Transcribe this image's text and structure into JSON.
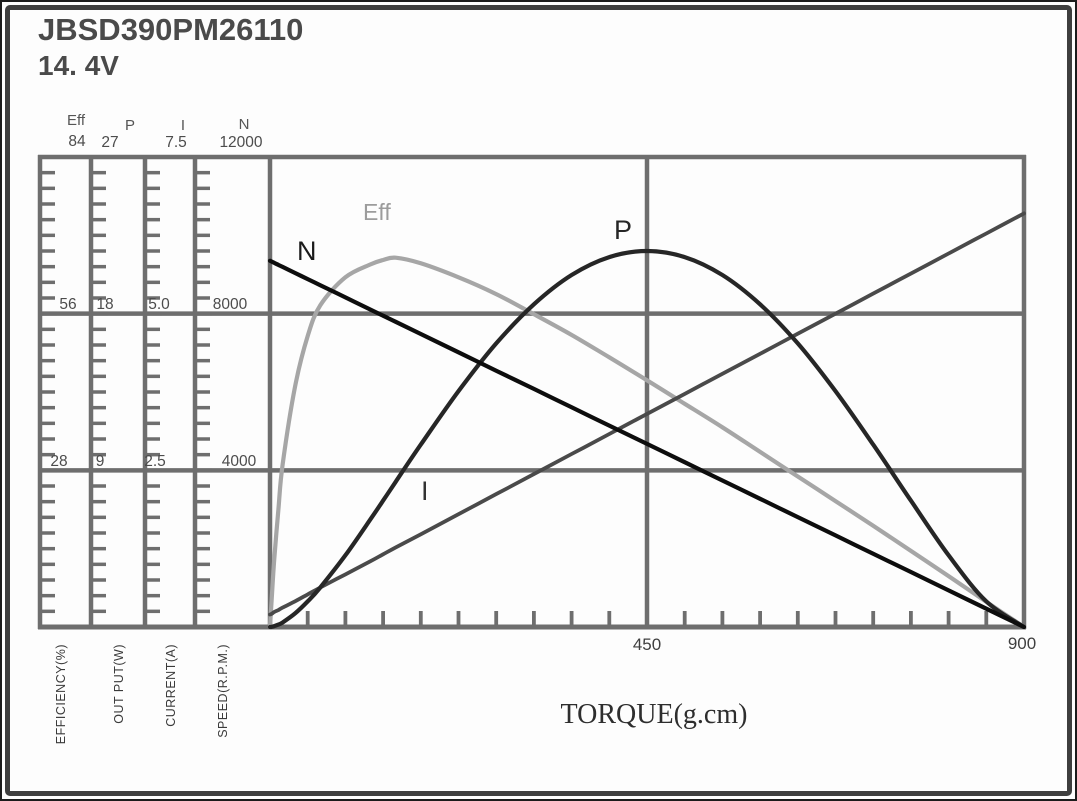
{
  "title": "JBSD390PM26110",
  "voltage": "14. 4V",
  "x_axis": {
    "title": "TORQUE(g.cm)",
    "min": 0,
    "max": 900,
    "minor_tick_interval": 45,
    "labels": [
      "450",
      "900"
    ]
  },
  "y_axes": [
    {
      "id": "eff",
      "header": "Eff",
      "unit_label": "EFFICIENCY(%)",
      "max": 84,
      "tick_labels": [
        "84",
        "56",
        "28"
      ]
    },
    {
      "id": "p",
      "header": "P",
      "unit_label": "OUT PUT(W)",
      "max": 27,
      "tick_labels": [
        "27",
        "18",
        "9"
      ]
    },
    {
      "id": "i",
      "header": "I",
      "unit_label": "CURRENT(A)",
      "max": 7.5,
      "tick_labels": [
        "7.5",
        "5.0",
        "2.5"
      ]
    },
    {
      "id": "n",
      "header": "N",
      "unit_label": "SPEED(R.P.M.)",
      "max": 12000,
      "tick_labels": [
        "12000",
        "8000",
        "4000"
      ]
    }
  ],
  "colors": {
    "grid": "#6e6e6e",
    "n_line": "#0d0d0d",
    "eff_line": "#a6a6a6",
    "p_line": "#262626",
    "i_line": "#4a4a4a"
  },
  "chart_data": {
    "type": "line",
    "title": "JBSD390PM26110 motor performance at 14. 4V",
    "xlabel": "TORQUE(g.cm)",
    "x_range": [
      0,
      900
    ],
    "grid": true,
    "x": [
      0,
      2,
      5,
      10,
      15,
      30,
      45,
      60,
      90,
      120,
      135,
      150,
      180,
      225,
      270,
      315,
      360,
      405,
      450,
      495,
      540,
      585,
      630,
      675,
      720,
      765,
      810,
      855,
      900
    ],
    "series": [
      {
        "name": "N",
        "label": "N",
        "axis": "n",
        "unit": "R.P.M.",
        "color": "#0d0d0d",
        "values": [
          9350,
          9329,
          9298,
          9246,
          9194,
          9038,
          8883,
          8727,
          8415,
          8103,
          7948,
          7792,
          7480,
          7013,
          6545,
          6078,
          5610,
          5143,
          4675,
          4208,
          3740,
          3273,
          2805,
          2338,
          1870,
          1403,
          935,
          468,
          0
        ]
      },
      {
        "name": "Eff",
        "label": "Eff",
        "axis": "eff",
        "unit": "%",
        "color": "#a6a6a6",
        "values": [
          0,
          5,
          12,
          21,
          29,
          43,
          52,
          57.5,
          62.5,
          64.8,
          65.6,
          66,
          65,
          62.5,
          59.5,
          55.9,
          52.2,
          48.2,
          44.1,
          39.9,
          35.7,
          31.3,
          26.9,
          22.5,
          18.1,
          13.6,
          9.1,
          4.5,
          0
        ]
      },
      {
        "name": "P",
        "label": "P",
        "axis": "p",
        "unit": "W",
        "color": "#262626",
        "values": [
          0,
          0.01,
          0.05,
          0.14,
          0.26,
          0.78,
          1.47,
          2.27,
          4.12,
          6.19,
          7.26,
          8.34,
          10.48,
          13.55,
          16.29,
          18.54,
          20.22,
          21.25,
          21.6,
          21.25,
          20.22,
          18.54,
          16.29,
          13.55,
          10.48,
          7.26,
          4.12,
          1.47,
          0
        ]
      },
      {
        "name": "I",
        "label": "I",
        "axis": "i",
        "unit": "A",
        "color": "#4a4a4a",
        "values": [
          0.2,
          0.21,
          0.24,
          0.27,
          0.31,
          0.41,
          0.52,
          0.63,
          0.84,
          1.05,
          1.16,
          1.27,
          1.48,
          1.8,
          2.12,
          2.44,
          2.76,
          3.08,
          3.4,
          3.72,
          4.04,
          4.36,
          4.68,
          5,
          5.32,
          5.64,
          5.96,
          6.28,
          6.6
        ]
      }
    ]
  }
}
